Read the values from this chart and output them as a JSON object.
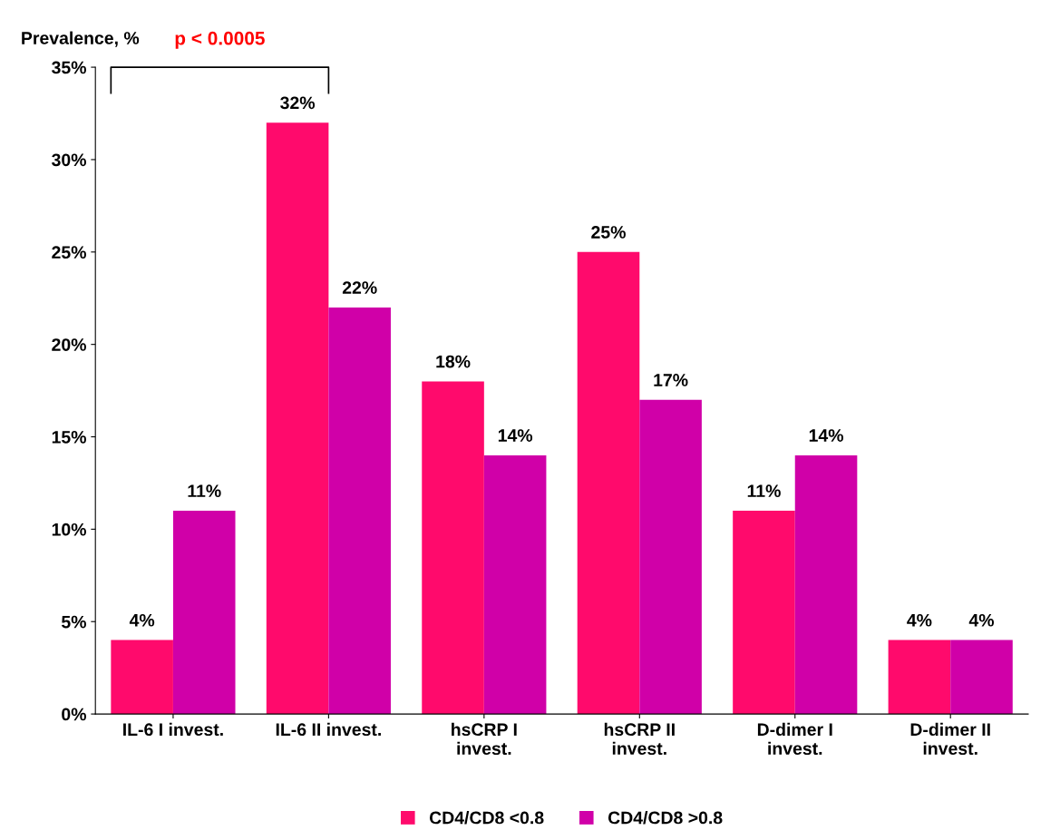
{
  "chart_data": {
    "type": "bar",
    "ylabel": "Prevalence, %",
    "categories": [
      "IL-6 I invest.",
      "IL-6 II invest.",
      "hsCRP I\ninvest.",
      "hsCRP II\ninvest.",
      "D-dimer I\ninvest.",
      "D-dimer II\ninvest."
    ],
    "series": [
      {
        "name": "CD4/CD8 <0.8",
        "color": "#ff0a6c",
        "values": [
          4,
          32,
          18,
          25,
          11,
          4
        ],
        "value_labels": [
          "4%",
          "32%",
          "18%",
          "25%",
          "11%",
          "4%"
        ]
      },
      {
        "name": "CD4/CD8 >0.8",
        "color": "#d000a8",
        "values": [
          11,
          22,
          14,
          17,
          14,
          4
        ],
        "value_labels": [
          "11%",
          "22%",
          "14%",
          "17%",
          "14%",
          "4%"
        ]
      }
    ],
    "ylim": [
      0,
      35
    ],
    "yticks": [
      {
        "value": 0,
        "label": "0%"
      },
      {
        "value": 5,
        "label": "5%"
      },
      {
        "value": 10,
        "label": "10%"
      },
      {
        "value": 15,
        "label": "15%"
      },
      {
        "value": 20,
        "label": "20%"
      },
      {
        "value": 25,
        "label": "25%"
      },
      {
        "value": 30,
        "label": "30%"
      },
      {
        "value": 35,
        "label": "35%"
      }
    ],
    "grid": false,
    "legend": "bottom",
    "annotations": [
      "p < 0.0005"
    ]
  }
}
